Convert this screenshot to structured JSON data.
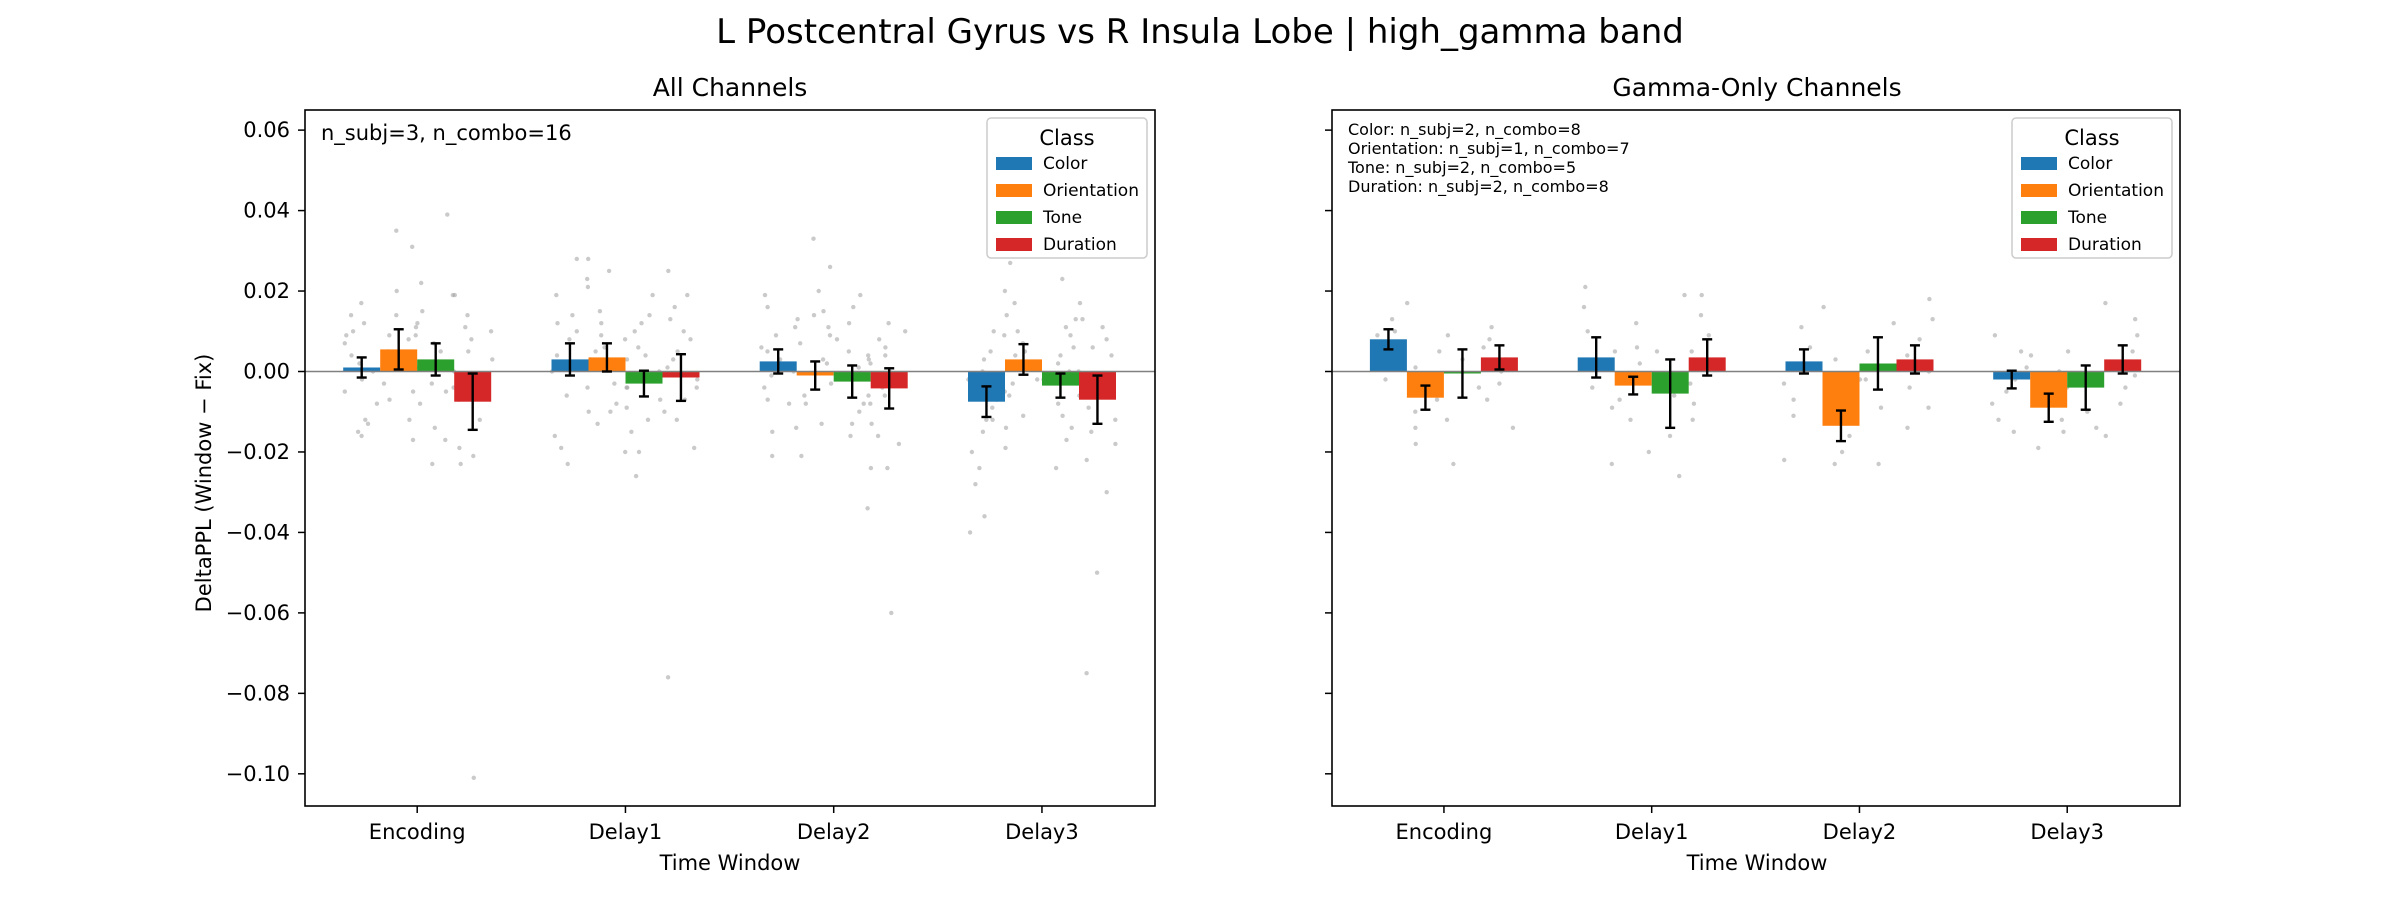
{
  "figure": {
    "suptitle": "L Postcentral Gyrus vs R Insula Lobe  |  high_gamma band"
  },
  "chart_data": [
    {
      "type": "bar",
      "title": "All Channels",
      "xlabel": "Time Window",
      "ylabel": "DeltaPPL (Window − Fix)",
      "categories": [
        "Encoding",
        "Delay1",
        "Delay2",
        "Delay3"
      ],
      "ylim": [
        -0.108,
        0.065
      ],
      "yticks": [
        0.06,
        0.04,
        0.02,
        0.0,
        -0.02,
        -0.04,
        -0.06,
        -0.08,
        -0.1
      ],
      "ytick_labels": [
        "0.06",
        "0.04",
        "0.02",
        "0.00",
        "−0.02",
        "−0.04",
        "−0.06",
        "−0.08",
        "−0.10"
      ],
      "grid": false,
      "zero_line": true,
      "legend": {
        "title": "Class",
        "placement": "top-right"
      },
      "annotation": [
        "n_subj=3, n_combo=16"
      ],
      "series": [
        {
          "name": "Color",
          "color": "#1f77b4",
          "values": [
            0.001,
            0.003,
            0.0025,
            -0.0075
          ],
          "err": [
            0.0025,
            0.004,
            0.003,
            0.0038
          ],
          "points": [
            [
              0.017,
              0.012,
              0.009,
              0.004,
              0.002,
              -0.002,
              -0.005,
              -0.008,
              -0.012,
              -0.015,
              0.01,
              0.0,
              -0.013,
              0.007,
              -0.016,
              0.014
            ],
            [
              0.028,
              0.019,
              0.014,
              0.008,
              0.004,
              0.0,
              -0.004,
              -0.01,
              -0.016,
              -0.023,
              0.028,
              0.012,
              -0.006,
              0.002,
              0.01,
              -0.019
            ],
            [
              0.019,
              0.013,
              0.009,
              0.005,
              0.003,
              -0.001,
              -0.004,
              -0.008,
              -0.015,
              -0.021,
              0.006,
              0.011,
              -0.007,
              0.0,
              0.002,
              0.016
            ],
            [
              0.005,
              0.0,
              -0.007,
              -0.012,
              -0.02,
              -0.028,
              -0.036,
              -0.04,
              -0.002,
              -0.015,
              0.01,
              -0.009,
              -0.005,
              -0.024,
              0.003,
              -0.012
            ]
          ]
        },
        {
          "name": "Orientation",
          "color": "#ff7f0e",
          "values": [
            0.0055,
            0.0035,
            -0.001,
            0.003
          ],
          "err": [
            0.005,
            0.0035,
            0.0035,
            0.0038
          ],
          "points": [
            [
              0.035,
              0.031,
              0.02,
              0.014,
              0.009,
              0.005,
              0.002,
              -0.003,
              -0.007,
              -0.012,
              -0.017,
              0.012,
              0.001,
              -0.005,
              0.008,
              0.003
            ],
            [
              0.025,
              0.021,
              0.015,
              0.009,
              0.005,
              0.001,
              -0.003,
              -0.008,
              -0.013,
              -0.02,
              0.023,
              0.012,
              -0.01,
              0.006,
              0.003,
              -0.004
            ],
            [
              0.033,
              0.026,
              0.02,
              0.014,
              0.007,
              0.002,
              -0.003,
              -0.008,
              -0.014,
              -0.021,
              0.015,
              0.003,
              -0.013,
              0.009,
              -0.006,
              0.011
            ],
            [
              0.027,
              0.02,
              0.014,
              0.009,
              0.005,
              0.002,
              -0.002,
              -0.006,
              -0.011,
              -0.019,
              0.017,
              0.007,
              -0.014,
              0.01,
              -0.003,
              0.004
            ]
          ]
        },
        {
          "name": "Tone",
          "color": "#2ca02c",
          "values": [
            0.003,
            -0.003,
            -0.0025,
            -0.0035
          ],
          "err": [
            0.004,
            0.0032,
            0.004,
            0.003
          ],
          "points": [
            [
              0.039,
              0.022,
              0.015,
              0.009,
              0.005,
              0.001,
              -0.003,
              -0.008,
              -0.014,
              -0.023,
              0.011,
              -0.005,
              0.007,
              -0.017,
              0.002,
              0.019
            ],
            [
              0.019,
              0.014,
              0.01,
              0.006,
              0.003,
              0.0,
              -0.004,
              -0.009,
              -0.015,
              -0.026,
              0.008,
              -0.012,
              0.012,
              -0.02,
              0.004,
              -0.007
            ],
            [
              0.016,
              0.012,
              0.008,
              0.004,
              0.001,
              -0.002,
              -0.006,
              -0.01,
              -0.016,
              -0.024,
              -0.034,
              0.005,
              -0.013,
              0.019,
              -0.008,
              0.003
            ],
            [
              0.023,
              0.017,
              0.011,
              0.006,
              0.002,
              -0.002,
              -0.006,
              -0.011,
              -0.017,
              -0.024,
              0.009,
              -0.014,
              0.004,
              -0.008,
              0.013,
              0.0
            ]
          ]
        },
        {
          "name": "Duration",
          "color": "#d62728",
          "values": [
            -0.0075,
            -0.0015,
            -0.0042,
            -0.007
          ],
          "err": [
            0.007,
            0.0058,
            0.005,
            0.006
          ],
          "points": [
            [
              0.019,
              0.014,
              0.008,
              0.003,
              -0.002,
              -0.007,
              -0.012,
              -0.019,
              -0.023,
              -0.101,
              0.011,
              -0.004,
              0.01,
              -0.021,
              0.0,
              0.005
            ],
            [
              0.025,
              0.019,
              0.013,
              0.008,
              0.003,
              -0.002,
              -0.007,
              -0.012,
              -0.019,
              -0.076,
              0.016,
              0.005,
              -0.004,
              0.01,
              -0.01,
              0.001
            ],
            [
              0.012,
              0.008,
              0.004,
              0.0,
              -0.004,
              -0.008,
              -0.013,
              -0.018,
              -0.024,
              -0.06,
              0.01,
              -0.002,
              0.006,
              -0.016,
              -0.006,
              0.002
            ],
            [
              0.013,
              0.008,
              0.004,
              0.0,
              -0.004,
              -0.009,
              -0.015,
              -0.022,
              -0.03,
              -0.05,
              -0.075,
              0.011,
              -0.002,
              -0.018,
              0.006,
              -0.012
            ]
          ]
        }
      ]
    },
    {
      "type": "bar",
      "title": "Gamma-Only Channels",
      "xlabel": "Time Window",
      "ylabel": "",
      "categories": [
        "Encoding",
        "Delay1",
        "Delay2",
        "Delay3"
      ],
      "ylim": [
        -0.108,
        0.065
      ],
      "yticks": [
        0.06,
        0.04,
        0.02,
        0.0,
        -0.02,
        -0.04,
        -0.06,
        -0.08,
        -0.1
      ],
      "ytick_labels": [],
      "grid": false,
      "zero_line": true,
      "legend": {
        "title": "Class",
        "placement": "top-right"
      },
      "annotation": [
        "Color: n_subj=2, n_combo=8",
        "Orientation: n_subj=1, n_combo=7",
        "Tone: n_subj=2, n_combo=5",
        "Duration: n_subj=2, n_combo=8"
      ],
      "series": [
        {
          "name": "Color",
          "color": "#1f77b4",
          "values": [
            0.008,
            0.0035,
            0.0025,
            -0.002
          ],
          "err": [
            0.0025,
            0.005,
            0.003,
            0.0022
          ],
          "points": [
            [
              0.017,
              0.013,
              0.01,
              0.007,
              0.005,
              0.002,
              -0.002,
              0.009
            ],
            [
              0.021,
              0.016,
              0.01,
              0.005,
              0.001,
              -0.004,
              -0.009,
              -0.023
            ],
            [
              0.016,
              0.011,
              0.006,
              0.002,
              -0.003,
              -0.007,
              -0.011,
              -0.022
            ],
            [
              0.009,
              0.005,
              0.001,
              -0.002,
              -0.005,
              -0.008,
              -0.012,
              -0.015
            ]
          ]
        },
        {
          "name": "Orientation",
          "color": "#ff7f0e",
          "values": [
            -0.0065,
            -0.0035,
            -0.0135,
            -0.009
          ],
          "err": [
            0.003,
            0.0022,
            0.0038,
            0.0035
          ],
          "points": [
            [
              0.005,
              0.001,
              -0.003,
              -0.007,
              -0.01,
              -0.014,
              -0.018
            ],
            [
              0.012,
              0.006,
              0.002,
              -0.002,
              -0.007,
              -0.012,
              -0.02
            ],
            [
              0.003,
              -0.002,
              -0.006,
              -0.011,
              -0.016,
              -0.02,
              -0.023
            ],
            [
              0.004,
              0.0,
              -0.004,
              -0.008,
              -0.012,
              -0.015,
              -0.019
            ]
          ]
        },
        {
          "name": "Tone",
          "color": "#2ca02c",
          "values": [
            -0.0005,
            -0.0055,
            0.002,
            -0.004
          ],
          "err": [
            0.006,
            0.0085,
            0.0065,
            0.0055
          ],
          "points": [
            [
              0.009,
              0.003,
              -0.004,
              -0.012,
              -0.023
            ],
            [
              0.019,
              0.005,
              -0.006,
              -0.016,
              -0.026
            ],
            [
              0.012,
              0.005,
              -0.002,
              -0.009,
              -0.023
            ],
            [
              0.017,
              0.005,
              -0.003,
              -0.01,
              -0.014
            ]
          ]
        },
        {
          "name": "Duration",
          "color": "#d62728",
          "values": [
            0.0035,
            0.0035,
            0.003,
            0.003
          ],
          "err": [
            0.003,
            0.0045,
            0.0035,
            0.0035
          ],
          "points": [
            [
              0.011,
              0.008,
              0.006,
              0.003,
              0.0,
              -0.003,
              -0.007,
              -0.014
            ],
            [
              0.019,
              0.014,
              0.009,
              0.005,
              0.001,
              -0.003,
              -0.008,
              -0.012
            ],
            [
              0.018,
              0.013,
              0.008,
              0.004,
              0.0,
              -0.004,
              -0.009,
              -0.014
            ],
            [
              0.013,
              0.009,
              0.005,
              0.002,
              -0.001,
              -0.004,
              -0.008,
              -0.016
            ]
          ]
        }
      ]
    }
  ]
}
